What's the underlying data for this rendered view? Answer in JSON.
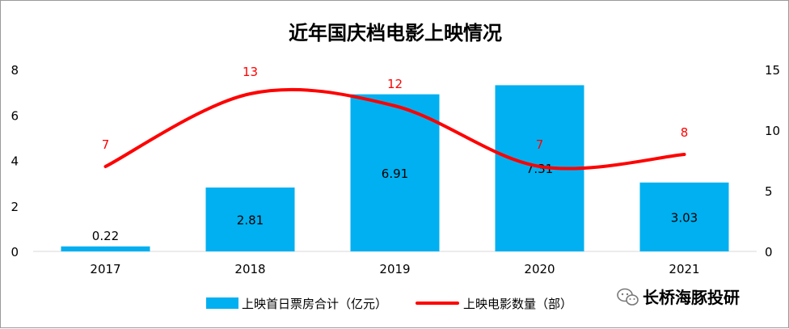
{
  "chart_data": {
    "type": "bar+line",
    "title": "近年国庆档电影上映情况",
    "categories": [
      "2017",
      "2018",
      "2019",
      "2020",
      "2021"
    ],
    "series": [
      {
        "name": "上映首日票房合计（亿元）",
        "type": "bar",
        "axis": "left",
        "color": "#00b0f0",
        "values": [
          0.22,
          2.81,
          6.91,
          7.31,
          3.03
        ]
      },
      {
        "name": "上映电影数量（部）",
        "type": "line",
        "axis": "right",
        "color": "#ff0000",
        "values": [
          7,
          13,
          12,
          7,
          8
        ]
      }
    ],
    "y_left": {
      "ylim": [
        0,
        8
      ],
      "ticks": [
        "0",
        "2",
        "4",
        "6",
        "8"
      ]
    },
    "y_right": {
      "ylim": [
        0,
        15
      ],
      "ticks": [
        "0",
        "5",
        "10",
        "15"
      ]
    },
    "grid": false,
    "legend": "bottom"
  },
  "watermark": {
    "text": "长桥海豚投研"
  }
}
